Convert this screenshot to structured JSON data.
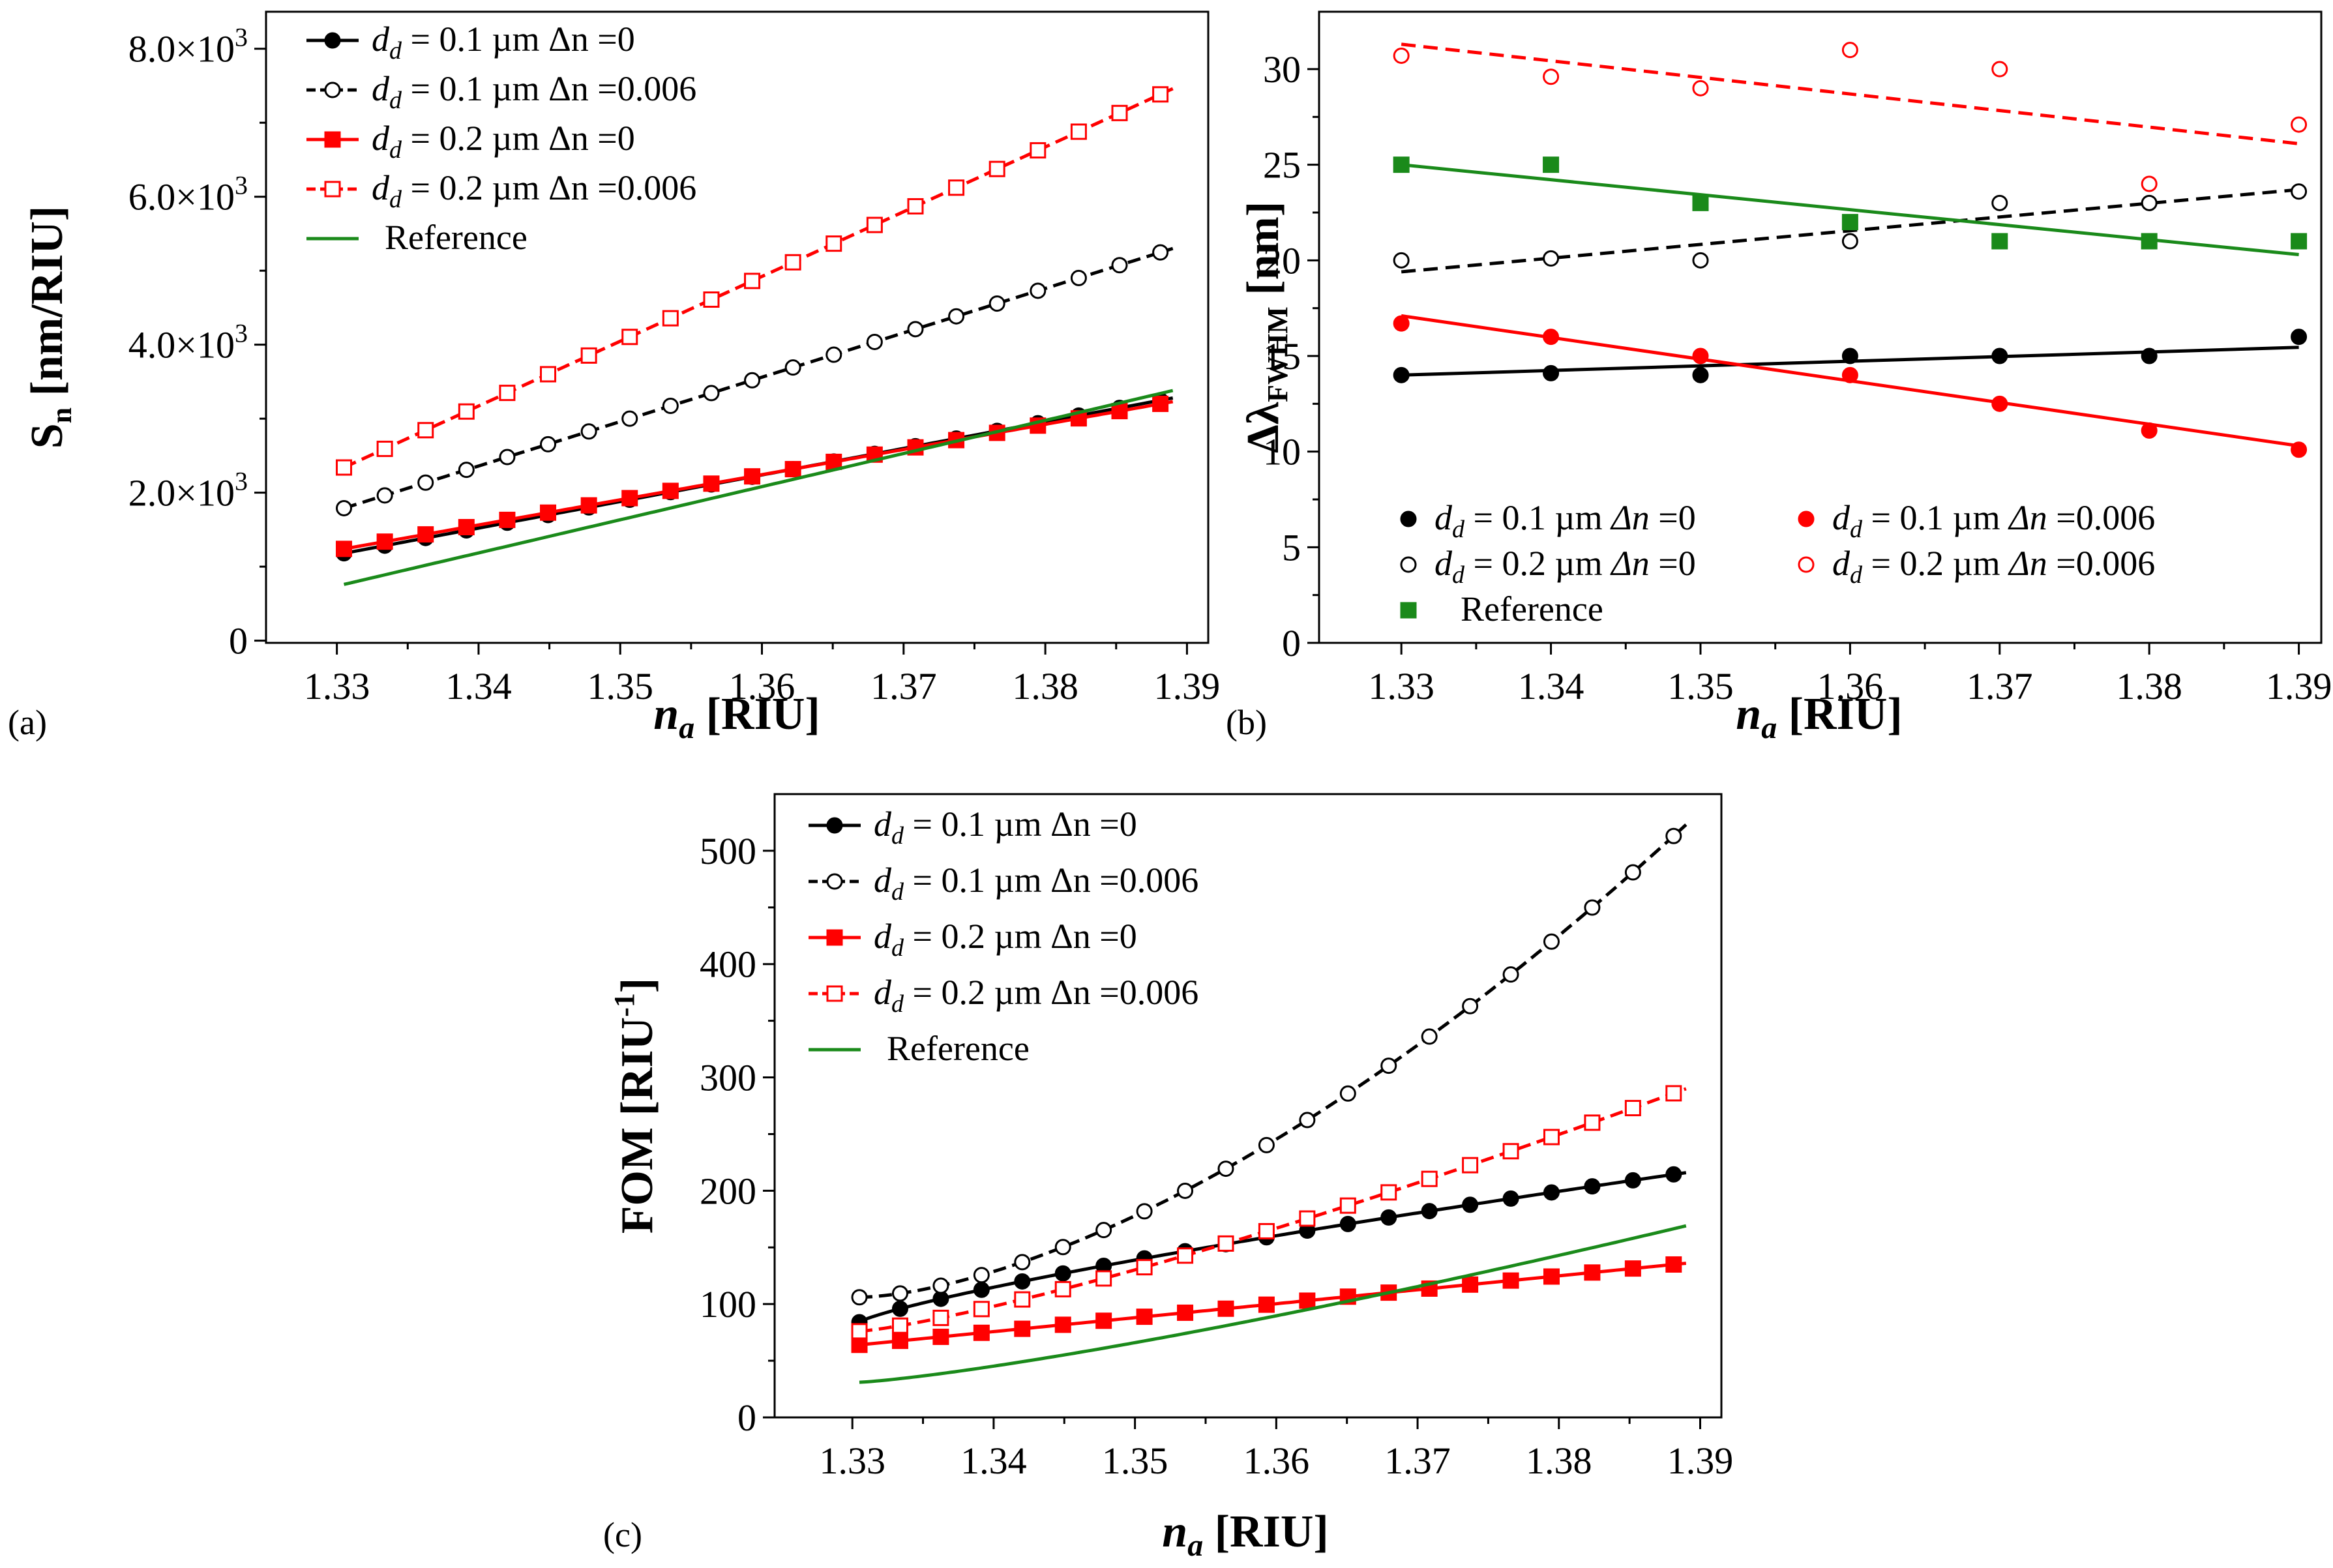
{
  "chart_data": [
    {
      "type": "line",
      "panel_label": "(a)",
      "xlabel": "n_a [RIU]",
      "xlabel_main": "n",
      "xlabel_sub": "a",
      "xlabel_unit": " [RIU]",
      "ylabel": "S_n [nm/RIU]",
      "ylabel_main": "S",
      "ylabel_sub": "n",
      "ylabel_unit": " [nm/RIU]",
      "xlim": [
        1.325,
        1.3915
      ],
      "ylim": [
        -30,
        8500
      ],
      "xticks": [
        1.33,
        1.34,
        1.35,
        1.36,
        1.37,
        1.38,
        1.39
      ],
      "xtick_labels": [
        "1.33",
        "1.34",
        "1.35",
        "1.36",
        "1.37",
        "1.38",
        "1.39"
      ],
      "yticks": [
        0,
        2000,
        4000,
        6000,
        8000
      ],
      "ytick_labels": [
        "0",
        "2.0×10³",
        "4.0×10³",
        "6.0×10³",
        "8.0×10³"
      ],
      "legend_position": "top-left",
      "series": [
        {
          "name": "d_d = 0.1 µm Δn =0",
          "legend": {
            "pre": "d",
            "sub": "d",
            "post": " = 0.1 µm Δn =0"
          },
          "color": "#000000",
          "dash": "",
          "marker": "circle",
          "fill": "filled",
          "x_start": 1.3305,
          "x_end": 1.389,
          "y_start": 1180,
          "y_end": 3280,
          "shape": "linear"
        },
        {
          "name": "d_d = 0.1 µm Δn =0.006",
          "legend": {
            "pre": "d",
            "sub": "d",
            "post": " = 0.1 µm Δn =0.006"
          },
          "color": "#000000",
          "dash": "20,10",
          "marker": "circle",
          "fill": "open",
          "x_start": 1.3305,
          "x_end": 1.389,
          "y_start": 1790,
          "y_end": 5300,
          "shape": "linear"
        },
        {
          "name": "d_d = 0.2 µm Δn =0",
          "legend": {
            "pre": "d",
            "sub": "d",
            "post": " = 0.2 µm Δn =0"
          },
          "color": "#ff0000",
          "dash": "",
          "marker": "square",
          "fill": "filled",
          "x_start": 1.3305,
          "x_end": 1.389,
          "y_start": 1240,
          "y_end": 3230,
          "shape": "linear"
        },
        {
          "name": "d_d = 0.2 µm Δn =0.006",
          "legend": {
            "pre": "d",
            "sub": "d",
            "post": " = 0.2 µm Δn =0.006"
          },
          "color": "#ff0000",
          "dash": "20,10",
          "marker": "square",
          "fill": "open",
          "x_start": 1.3305,
          "x_end": 1.389,
          "y_start": 2340,
          "y_end": 7460,
          "shape": "linear"
        },
        {
          "name": "Reference",
          "legend": {
            "pre": "",
            "sub": "",
            "post": "Reference"
          },
          "color": "#1a8a1a",
          "dash": "",
          "marker": "none",
          "fill": "none",
          "x_start": 1.3305,
          "x_end": 1.389,
          "y_start": 760,
          "y_end": 3380,
          "shape": "linear"
        }
      ]
    },
    {
      "type": "scatter",
      "panel_label": "(b)",
      "xlabel": "n_a [RIU]",
      "xlabel_main": "n",
      "xlabel_sub": "a",
      "xlabel_unit": " [RIU]",
      "ylabel": "Δλ_FWHM [nm]",
      "ylabel_main": "Δλ",
      "ylabel_sub": "FWHM",
      "ylabel_unit": " [nm]",
      "xlim": [
        1.3245,
        1.3915
      ],
      "ylim": [
        0,
        33
      ],
      "xticks": [
        1.33,
        1.34,
        1.35,
        1.36,
        1.37,
        1.38,
        1.39
      ],
      "xtick_labels": [
        "1.33",
        "1.34",
        "1.35",
        "1.36",
        "1.37",
        "1.38",
        "1.39"
      ],
      "yticks": [
        0,
        5,
        10,
        15,
        20,
        25,
        30
      ],
      "ytick_labels": [
        "0",
        "5",
        "10",
        "15",
        "20",
        "25",
        "30"
      ],
      "legend_position": "bottom-left",
      "x": [
        1.33,
        1.34,
        1.35,
        1.36,
        1.37,
        1.38,
        1.39
      ],
      "series": [
        {
          "name": "d_d = 0.1 µm Δn =0",
          "legend": {
            "pre": "d",
            "sub": "d",
            "post": " = 0.1 µm ",
            "ital": "Δn",
            "tail": " =0"
          },
          "color": "#000000",
          "marker": "circle",
          "fill": "filled",
          "values": [
            14,
            14.1,
            14,
            15,
            15,
            15,
            16
          ],
          "fit": [
            14,
            15.45
          ],
          "dash": ""
        },
        {
          "name": "d_d = 0.2 µm Δn =0",
          "legend": {
            "pre": "d",
            "sub": "d",
            "post": " = 0.2 µm ",
            "ital": "Δn",
            "tail": " =0"
          },
          "color": "#000000",
          "marker": "circle",
          "fill": "open",
          "values": [
            20,
            20.1,
            20,
            21,
            23,
            23,
            23.6
          ],
          "fit": [
            19.4,
            23.7
          ],
          "dash": "22,12"
        },
        {
          "name": "Reference",
          "legend": {
            "pre": "",
            "sub": "",
            "post": "Reference",
            "ital": "",
            "tail": ""
          },
          "color": "#1a8a1a",
          "marker": "square",
          "fill": "filled",
          "values": [
            25,
            25,
            23,
            22,
            21,
            21,
            21
          ],
          "fit": [
            25,
            20.3
          ],
          "dash": ""
        },
        {
          "name": "d_d = 0.1 µm Δn =0.006",
          "legend": {
            "pre": "d",
            "sub": "d",
            "post": " = 0.1 µm ",
            "ital": "Δn",
            "tail": " =0.006"
          },
          "color": "#ff0000",
          "marker": "circle",
          "fill": "filled",
          "values": [
            16.7,
            16,
            15,
            14,
            12.5,
            11.1,
            10.1
          ],
          "fit": [
            17.1,
            10.3
          ],
          "dash": ""
        },
        {
          "name": "d_d = 0.2 µm Δn =0.006",
          "legend": {
            "pre": "d",
            "sub": "d",
            "post": " = 0.2 µm ",
            "ital": "Δn",
            "tail": " =0.006"
          },
          "color": "#ff0000",
          "marker": "circle",
          "fill": "open",
          "values": [
            30.7,
            29.6,
            29,
            31,
            30,
            24,
            27.1
          ],
          "fit": [
            31.3,
            26.1
          ],
          "dash": "22,12"
        }
      ]
    },
    {
      "type": "line",
      "panel_label": "(c)",
      "xlabel": "n_a [RIU]",
      "xlabel_main": "n",
      "xlabel_sub": "a",
      "xlabel_unit": " [RIU]",
      "ylabel": "FOM [RIU⁻¹]",
      "ylabel_main": "FOM [RIU",
      "ylabel_sup": "-1",
      "ylabel_unit": "]",
      "xlim": [
        1.3245,
        1.3915
      ],
      "ylim": [
        0,
        550
      ],
      "xticks": [
        1.33,
        1.34,
        1.35,
        1.36,
        1.37,
        1.38,
        1.39
      ],
      "xtick_labels": [
        "1.33",
        "1.34",
        "1.35",
        "1.36",
        "1.37",
        "1.38",
        "1.39"
      ],
      "yticks": [
        0,
        100,
        200,
        300,
        400,
        500
      ],
      "ytick_labels": [
        "0",
        "100",
        "200",
        "300",
        "400",
        "500"
      ],
      "legend_position": "top-left",
      "series": [
        {
          "name": "d_d = 0.1 µm Δn =0",
          "legend": {
            "pre": "d",
            "sub": "d",
            "post": " = 0.1 µm Δn =0"
          },
          "color": "#000000",
          "dash": "",
          "marker": "circle",
          "fill": "filled",
          "x_start": 1.3305,
          "x_end": 1.389,
          "y_start": 84,
          "y_end": 216,
          "shape": "concave"
        },
        {
          "name": "d_d = 0.1 µm Δn =0.006",
          "legend": {
            "pre": "d",
            "sub": "d",
            "post": " = 0.1 µm Δn =0.006"
          },
          "color": "#000000",
          "dash": "20,10",
          "marker": "circle",
          "fill": "open",
          "x_start": 1.3305,
          "x_end": 1.389,
          "y_start": 106,
          "y_end": 523,
          "shape": "convex"
        },
        {
          "name": "d_d = 0.2 µm Δn =0",
          "legend": {
            "pre": "d",
            "sub": "d",
            "post": " = 0.2 µm Δn =0"
          },
          "color": "#ff0000",
          "dash": "",
          "marker": "square",
          "fill": "filled",
          "x_start": 1.3305,
          "x_end": 1.389,
          "y_start": 64,
          "y_end": 136,
          "shape": "linear"
        },
        {
          "name": "d_d = 0.2 µm Δn =0.006",
          "legend": {
            "pre": "d",
            "sub": "d",
            "post": " = 0.2 µm Δn =0.006"
          },
          "color": "#ff0000",
          "dash": "20,10",
          "marker": "square",
          "fill": "open",
          "x_start": 1.3305,
          "x_end": 1.389,
          "y_start": 76,
          "y_end": 290,
          "shape": "mildconvex"
        },
        {
          "name": "Reference",
          "legend": {
            "pre": "",
            "sub": "",
            "post": "Reference"
          },
          "color": "#1a8a1a",
          "dash": "",
          "marker": "none",
          "fill": "none",
          "x_start": 1.3305,
          "x_end": 1.389,
          "y_start": 31,
          "y_end": 169,
          "shape": "mildconvex"
        }
      ]
    }
  ]
}
